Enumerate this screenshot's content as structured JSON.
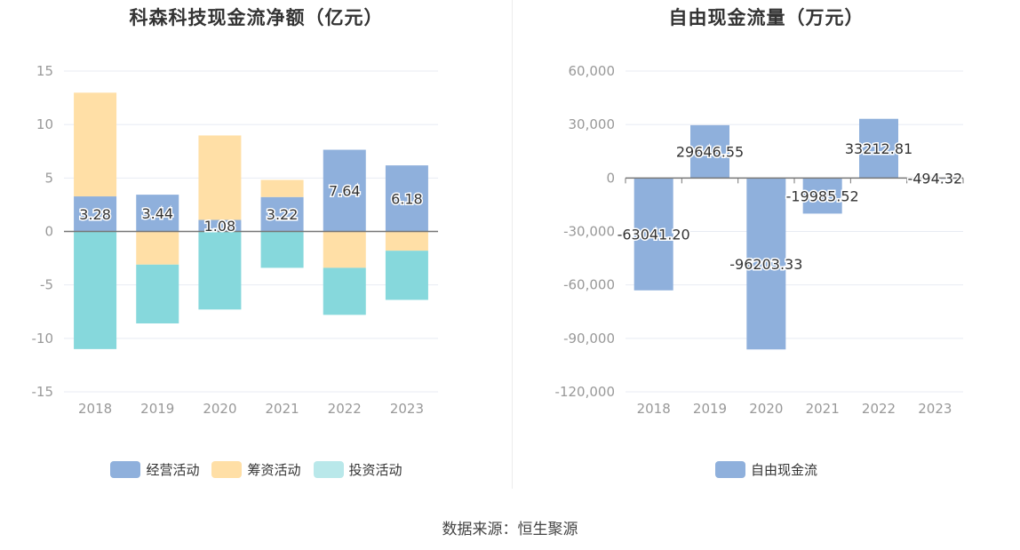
{
  "source_text": "数据来源：恒生聚源",
  "chart_data": [
    {
      "type": "bar",
      "stacked": true,
      "title": "科森科技现金流净额（亿元）",
      "categories": [
        "2018",
        "2019",
        "2020",
        "2021",
        "2022",
        "2023"
      ],
      "ylim": [
        -15,
        15
      ],
      "yticks": [
        15,
        10,
        5,
        0,
        -5,
        -10,
        -15
      ],
      "ytick_labels": [
        "15",
        "10",
        "5",
        "0",
        "-5",
        "-10",
        "-15"
      ],
      "legend_position": "bottom-center",
      "grid": true,
      "series": [
        {
          "name": "经营活动",
          "color": "#8fb0dc",
          "values": [
            3.28,
            3.44,
            1.08,
            3.22,
            7.64,
            6.18
          ],
          "labels": [
            "3.28",
            "3.44",
            "1.08",
            "3.22",
            "7.64",
            "6.18"
          ]
        },
        {
          "name": "筹资活动",
          "color": "#ffdfa6",
          "values": [
            9.7,
            -3.1,
            7.9,
            1.6,
            -3.4,
            -1.8
          ]
        },
        {
          "name": "投资活动",
          "color": "#86d8dc",
          "values": [
            -11.0,
            -5.5,
            -7.3,
            -3.4,
            -4.4,
            -4.6
          ]
        }
      ]
    },
    {
      "type": "bar",
      "title": "自由现金流量（万元）",
      "categories": [
        "2018",
        "2019",
        "2020",
        "2021",
        "2022",
        "2023"
      ],
      "ylim": [
        -120000,
        60000
      ],
      "yticks": [
        60000,
        30000,
        0,
        -30000,
        -60000,
        -90000,
        -120000
      ],
      "ytick_labels": [
        "60,000",
        "30,000",
        "0",
        "-30,000",
        "-60,000",
        "-90,000",
        "-120,000"
      ],
      "legend_position": "bottom-center",
      "grid": true,
      "series": [
        {
          "name": "自由现金流",
          "color": "#8fb0dc",
          "values": [
            -63041.2,
            29646.55,
            -96203.33,
            -19985.52,
            33212.81,
            -494.32
          ],
          "labels": [
            "-63041.20",
            "29646.55",
            "-96203.33",
            "-19985.52",
            "33212.81",
            "-494.32"
          ]
        }
      ]
    }
  ]
}
